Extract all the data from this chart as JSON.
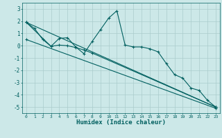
{
  "xlabel": "Humidex (Indice chaleur)",
  "background_color": "#cce8e8",
  "grid_color": "#aacccc",
  "line_color": "#005f5f",
  "xlim": [
    -0.5,
    23.5
  ],
  "ylim": [
    -5.5,
    3.5
  ],
  "xticks": [
    0,
    1,
    2,
    3,
    4,
    5,
    6,
    7,
    8,
    9,
    10,
    11,
    12,
    13,
    14,
    15,
    16,
    17,
    18,
    19,
    20,
    21,
    22,
    23
  ],
  "yticks": [
    -5,
    -4,
    -3,
    -2,
    -1,
    0,
    1,
    2,
    3
  ],
  "series": [
    {
      "x": [
        0,
        1,
        2,
        3,
        4,
        5,
        6,
        7,
        8,
        9,
        10,
        11,
        12,
        13,
        14,
        15,
        16,
        17,
        18,
        19,
        20,
        21,
        22,
        23
      ],
      "y": [
        1.9,
        1.4,
        0.5,
        -0.05,
        0.6,
        0.65,
        -0.1,
        -0.65,
        0.35,
        1.3,
        2.25,
        2.85,
        0.05,
        -0.1,
        -0.1,
        -0.25,
        -0.5,
        -1.45,
        -2.35,
        -2.65,
        -3.45,
        -3.65,
        -4.45,
        -5.0
      ]
    },
    {
      "x": [
        0,
        3,
        4,
        5,
        6,
        7,
        8,
        23
      ],
      "y": [
        1.9,
        -0.05,
        0.05,
        0.0,
        -0.15,
        -0.35,
        -0.6,
        -5.0
      ]
    },
    {
      "x": [
        0,
        23
      ],
      "y": [
        1.9,
        -5.0
      ]
    },
    {
      "x": [
        0,
        23
      ],
      "y": [
        0.5,
        -5.1
      ]
    }
  ]
}
